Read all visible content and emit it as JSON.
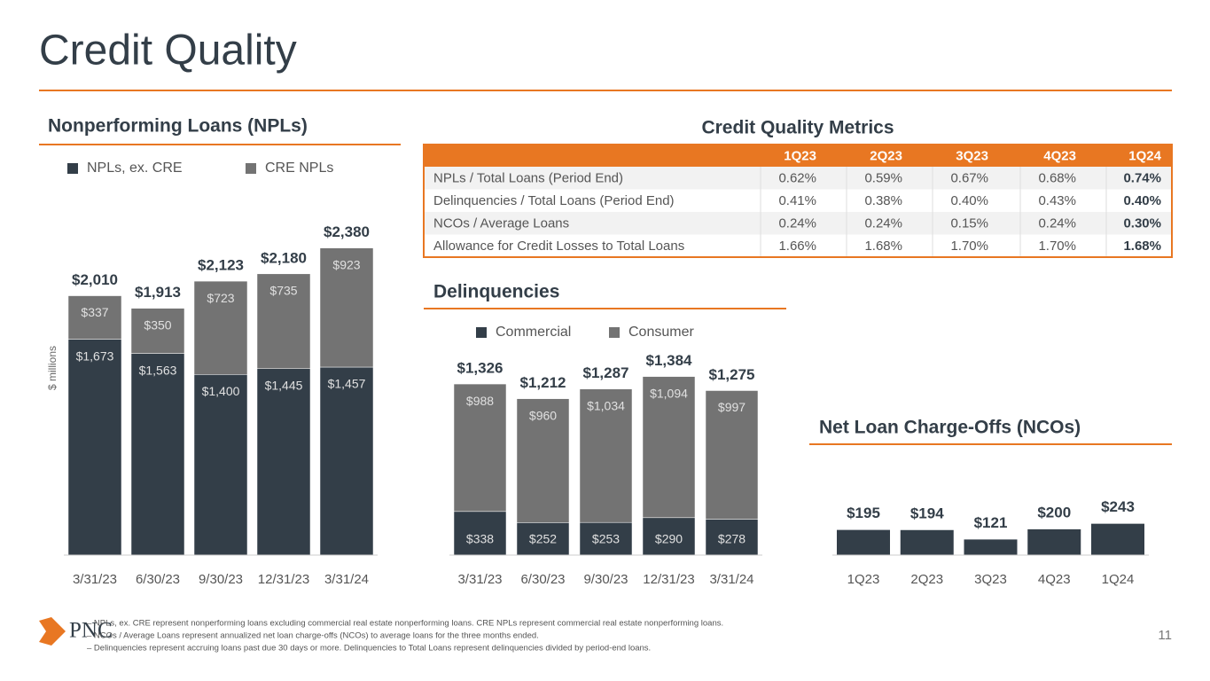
{
  "title": "Credit Quality",
  "chart_data": [
    {
      "type": "stacked_bar",
      "title": "Nonperforming Loans (NPLs)",
      "y_label": "$ millions",
      "categories": [
        "3/31/23",
        "6/30/23",
        "9/30/23",
        "12/31/23",
        "3/31/24"
      ],
      "series": [
        {
          "name": "NPLs, ex. CRE",
          "color": "#333e48",
          "values": [
            1673,
            1563,
            1400,
            1445,
            1457
          ],
          "value_labels": [
            "$1,673",
            "$1,563",
            "$1,400",
            "$1,445",
            "$1,457"
          ]
        },
        {
          "name": "CRE NPLs",
          "color": "#737373",
          "values": [
            337,
            350,
            723,
            735,
            923
          ],
          "value_labels": [
            "$337",
            "$350",
            "$723",
            "$735",
            "$923"
          ]
        }
      ],
      "totals": [
        2010,
        1913,
        2123,
        2180,
        2380
      ],
      "total_labels": [
        "$2,010",
        "$1,913",
        "$2,123",
        "$2,180",
        "$2,380"
      ]
    },
    {
      "type": "stacked_bar",
      "title": "Delinquencies",
      "categories": [
        "3/31/23",
        "6/30/23",
        "9/30/23",
        "12/31/23",
        "3/31/24"
      ],
      "series": [
        {
          "name": "Commercial",
          "color": "#333e48",
          "values": [
            338,
            252,
            253,
            290,
            278
          ],
          "value_labels": [
            "$338",
            "$252",
            "$253",
            "$290",
            "$278"
          ]
        },
        {
          "name": "Consumer",
          "color": "#737373",
          "values": [
            988,
            960,
            1034,
            1094,
            997
          ],
          "value_labels": [
            "$988",
            "$960",
            "$1,034",
            "$1,094",
            "$997"
          ]
        }
      ],
      "totals": [
        1326,
        1212,
        1287,
        1384,
        1275
      ],
      "total_labels": [
        "$1,326",
        "$1,212",
        "$1,287",
        "$1,384",
        "$1,275"
      ]
    },
    {
      "type": "bar",
      "title": "Net Loan Charge-Offs (NCOs)",
      "categories": [
        "1Q23",
        "2Q23",
        "3Q23",
        "4Q23",
        "1Q24"
      ],
      "color": "#333e48",
      "values": [
        195,
        194,
        121,
        200,
        243
      ],
      "value_labels": [
        "$195",
        "$194",
        "$121",
        "$200",
        "$243"
      ]
    }
  ],
  "table": {
    "title": "Credit Quality Metrics",
    "header": [
      "1Q23",
      "2Q23",
      "3Q23",
      "4Q23",
      "1Q24"
    ],
    "rows": [
      [
        "NPLs / Total Loans (Period End)",
        "0.62%",
        "0.59%",
        "0.67%",
        "0.68%",
        "0.74%"
      ],
      [
        "Delinquencies / Total Loans (Period End)",
        "0.41%",
        "0.38%",
        "0.40%",
        "0.43%",
        "0.40%"
      ],
      [
        "NCOs / Average Loans",
        "0.24%",
        "0.24%",
        "0.15%",
        "0.24%",
        "0.30%"
      ],
      [
        "Allowance for Credit Losses to Total Loans",
        "1.66%",
        "1.68%",
        "1.70%",
        "1.70%",
        "1.68%"
      ]
    ]
  },
  "footnotes": [
    "– NPLs, ex. CRE represent nonperforming loans excluding commercial real estate nonperforming loans. CRE NPLs represent commercial real estate nonperforming loans.",
    "– NCOs / Average Loans represent annualized net loan charge-offs (NCOs) to average loans for the three months ended.",
    "– Delinquencies represent accruing loans past due 30 days or more. Delinquencies to Total Loans represent delinquencies divided by period-end loans."
  ],
  "logo": "PNC",
  "page_number": "11"
}
